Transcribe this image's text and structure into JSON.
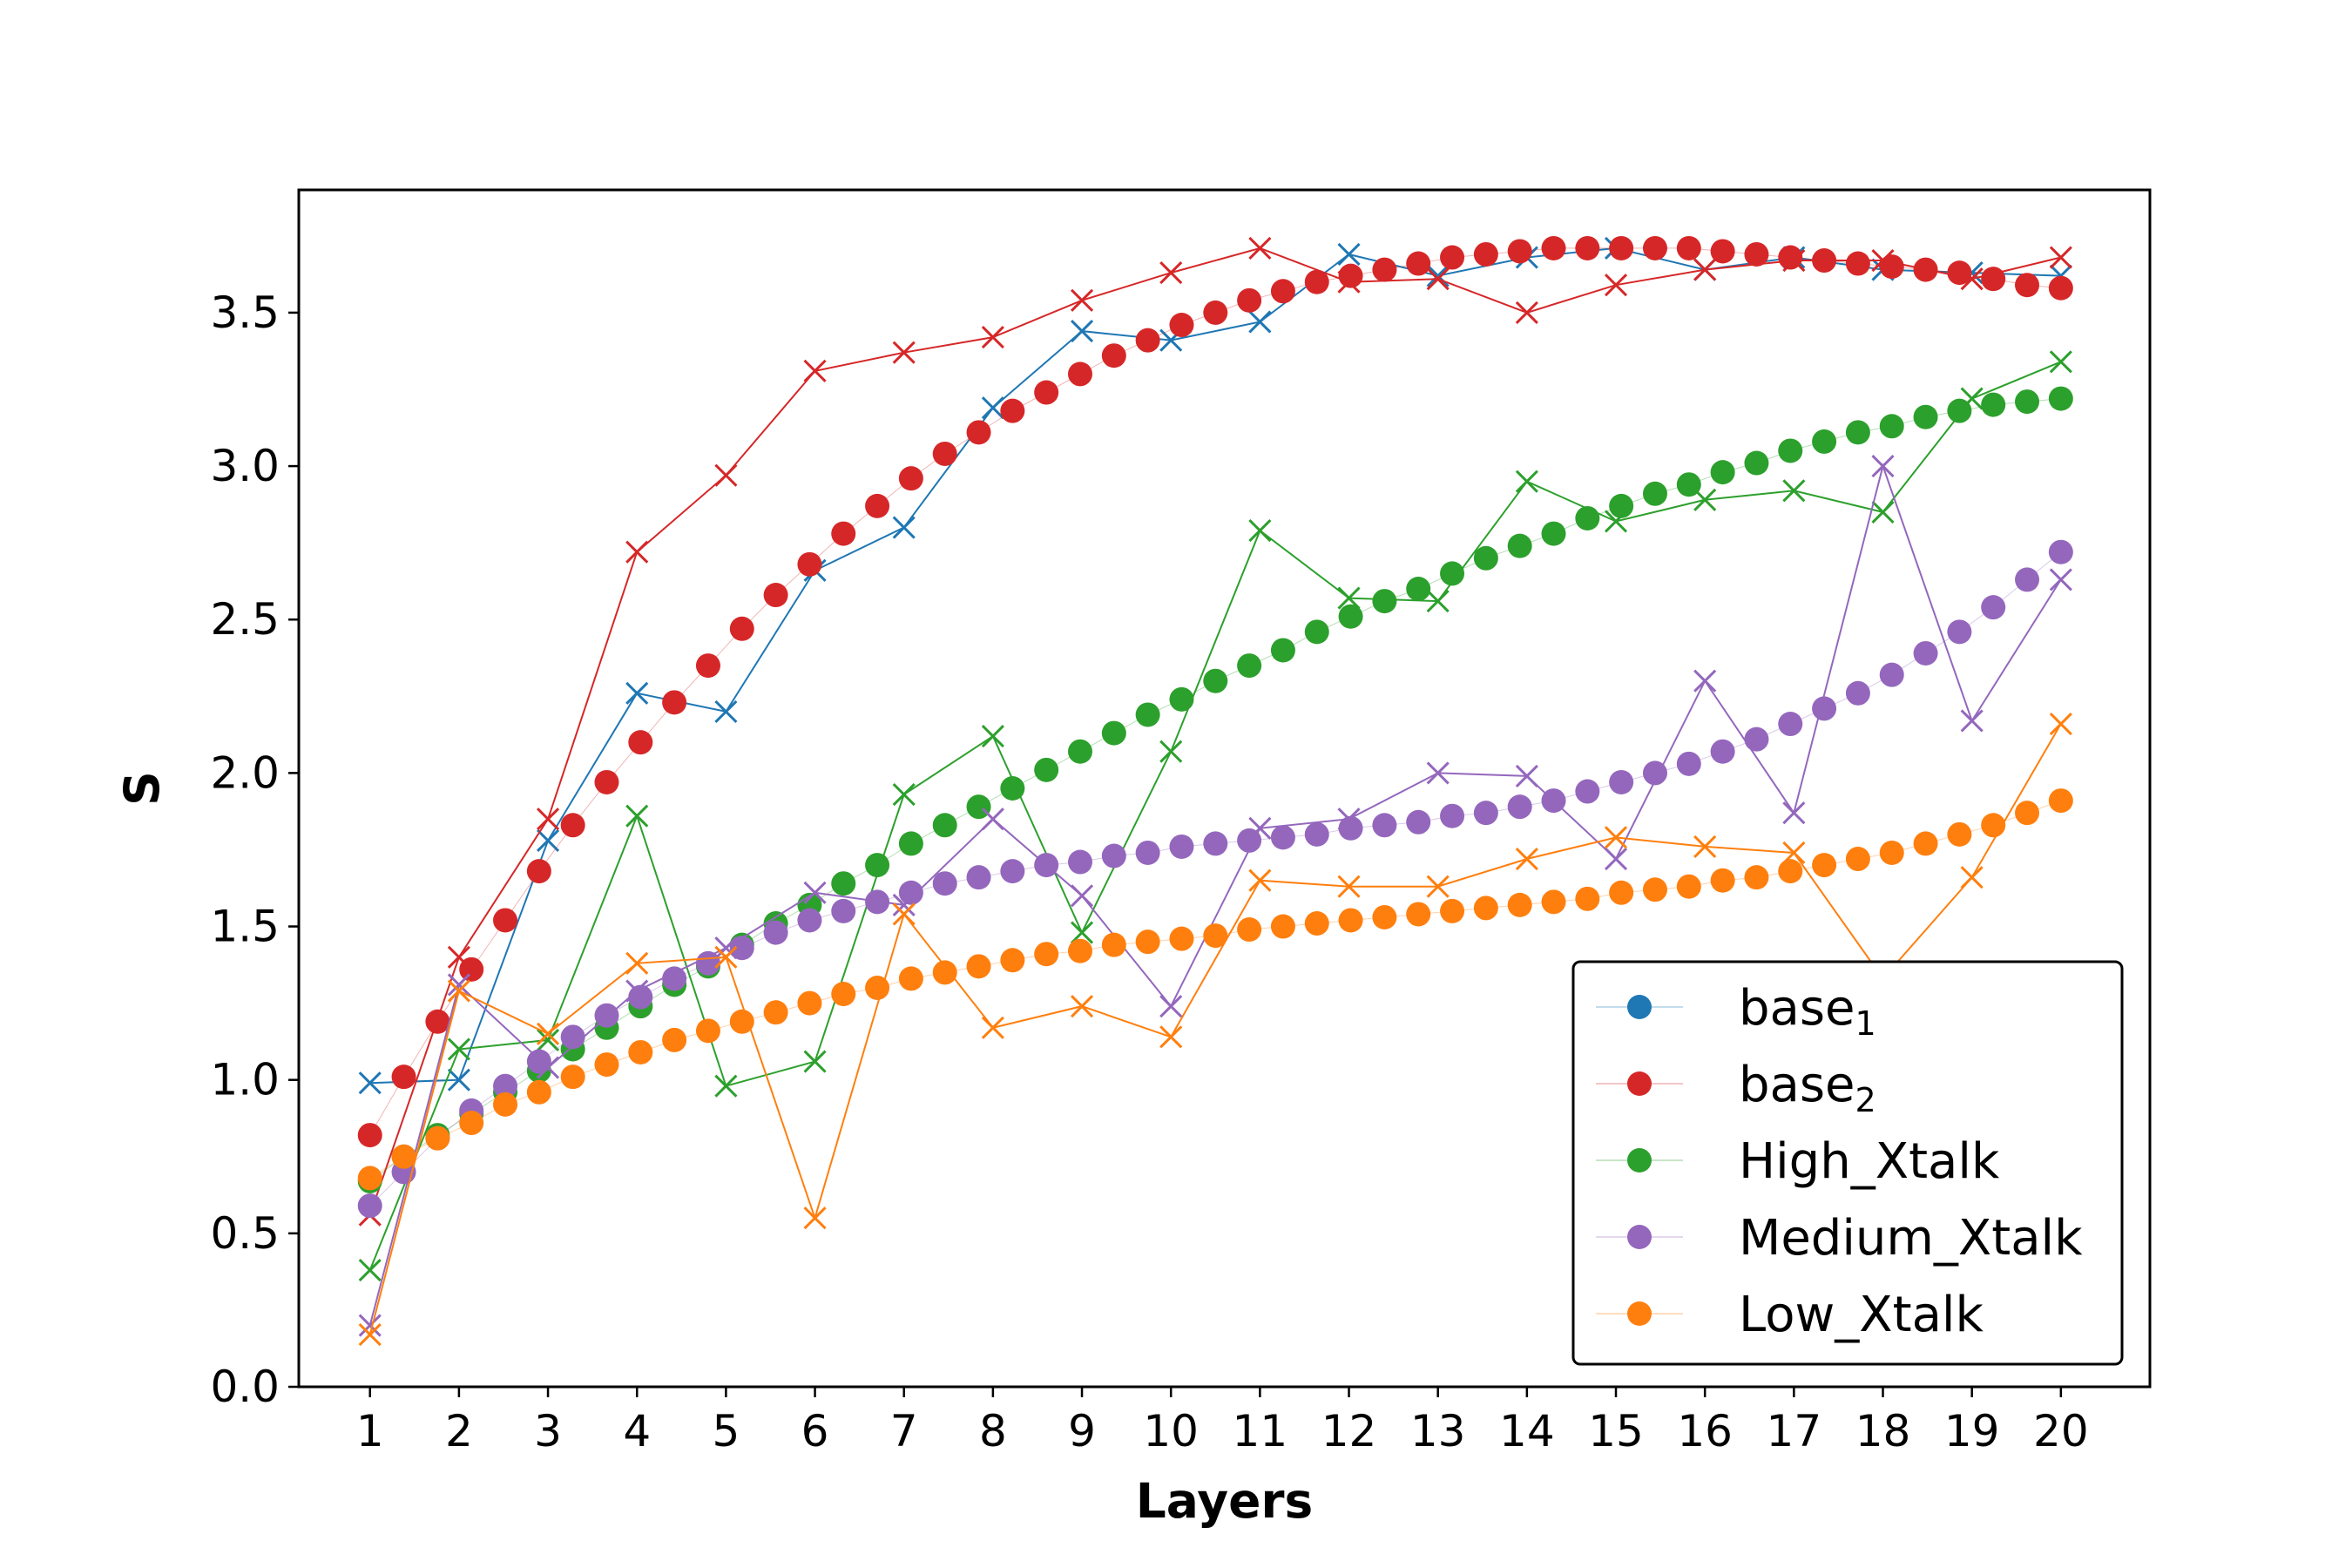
{
  "chart_data": {
    "type": "scatter",
    "title": "",
    "xlabel": "Layers",
    "ylabel": "S",
    "x_ticks": [
      "1",
      "2",
      "3",
      "4",
      "5",
      "6",
      "7",
      "8",
      "9",
      "10",
      "11",
      "12",
      "13",
      "14",
      "15",
      "16",
      "17",
      "18",
      "19",
      "20"
    ],
    "y_ticks": [
      "0.0",
      "0.5",
      "1.0",
      "1.5",
      "2.0",
      "2.5",
      "3.0",
      "3.5"
    ],
    "xlim": [
      0.2,
      21.0
    ],
    "ylim": [
      0.0,
      3.9
    ],
    "grid": false,
    "legend_position": "bottom-right",
    "series": [
      {
        "name": "base",
        "subscript": "1",
        "color": "#1f77b4",
        "marker_x": [
          1,
          2,
          3,
          4,
          5,
          6,
          7,
          8,
          9,
          10,
          11,
          12,
          13,
          14,
          15,
          16,
          17,
          18,
          19,
          20
        ],
        "marker_y": [
          0.99,
          1.0,
          1.78,
          2.26,
          2.2,
          2.66,
          2.8,
          3.19,
          3.44,
          3.41,
          3.47,
          3.69,
          3.62,
          3.68,
          3.71,
          3.64,
          3.68,
          3.64,
          3.63,
          3.62
        ],
        "dot_x": [],
        "dot_y": []
      },
      {
        "name": "base",
        "subscript": "2",
        "color": "#d62728",
        "marker_x": [
          1,
          2,
          3,
          4,
          5,
          6,
          7,
          8,
          9,
          10,
          11,
          12,
          13,
          14,
          15,
          16,
          17,
          18,
          19,
          20
        ],
        "marker_y": [
          0.56,
          1.4,
          1.85,
          2.72,
          2.97,
          3.31,
          3.37,
          3.42,
          3.54,
          3.63,
          3.71,
          3.6,
          3.61,
          3.5,
          3.59,
          3.64,
          3.67,
          3.67,
          3.61,
          3.68
        ],
        "dot_x": [
          1,
          1.38,
          1.76,
          2.14,
          2.52,
          2.9,
          3.28,
          3.66,
          4.04,
          4.42,
          4.8,
          5.18,
          5.56,
          5.94,
          6.32,
          6.7,
          7.08,
          7.46,
          7.84,
          8.22,
          8.6,
          8.98,
          9.36,
          9.74,
          10.12,
          10.5,
          10.88,
          11.26,
          11.64,
          12.02,
          12.4,
          12.78,
          13.16,
          13.54,
          13.92,
          14.3,
          14.68,
          15.06,
          15.44,
          15.82,
          16.2,
          16.58,
          16.96,
          17.34,
          17.72,
          18.1,
          18.48,
          18.86,
          19.24,
          19.62,
          20
        ],
        "dot_y": [
          0.82,
          1.01,
          1.19,
          1.36,
          1.52,
          1.68,
          1.83,
          1.97,
          2.1,
          2.23,
          2.35,
          2.47,
          2.58,
          2.68,
          2.78,
          2.87,
          2.96,
          3.04,
          3.11,
          3.18,
          3.24,
          3.3,
          3.36,
          3.41,
          3.46,
          3.5,
          3.54,
          3.57,
          3.6,
          3.62,
          3.64,
          3.66,
          3.68,
          3.69,
          3.7,
          3.71,
          3.71,
          3.71,
          3.71,
          3.71,
          3.7,
          3.69,
          3.68,
          3.67,
          3.66,
          3.65,
          3.64,
          3.63,
          3.61,
          3.59,
          3.58
        ]
      },
      {
        "name": "High_Xtalk",
        "subscript": "",
        "color": "#2ca02c",
        "marker_x": [
          1,
          2,
          3,
          4,
          5,
          6,
          7,
          8,
          9,
          10,
          11,
          12,
          13,
          14,
          15,
          16,
          17,
          18,
          19,
          20
        ],
        "marker_y": [
          0.38,
          1.1,
          1.13,
          1.86,
          0.98,
          1.06,
          1.93,
          2.12,
          1.48,
          2.07,
          2.79,
          2.57,
          2.56,
          2.95,
          2.82,
          2.89,
          2.92,
          2.85,
          3.22,
          3.34
        ],
        "dot_x": [
          1,
          1.38,
          1.76,
          2.14,
          2.52,
          2.9,
          3.28,
          3.66,
          4.04,
          4.42,
          4.8,
          5.18,
          5.56,
          5.94,
          6.32,
          6.7,
          7.08,
          7.46,
          7.84,
          8.22,
          8.6,
          8.98,
          9.36,
          9.74,
          10.12,
          10.5,
          10.88,
          11.26,
          11.64,
          12.02,
          12.4,
          12.78,
          13.16,
          13.54,
          13.92,
          14.3,
          14.68,
          15.06,
          15.44,
          15.82,
          16.2,
          16.58,
          16.96,
          17.34,
          17.72,
          18.1,
          18.48,
          18.86,
          19.24,
          19.62,
          20
        ],
        "dot_y": [
          0.67,
          0.75,
          0.82,
          0.89,
          0.96,
          1.03,
          1.1,
          1.17,
          1.24,
          1.31,
          1.37,
          1.44,
          1.51,
          1.57,
          1.64,
          1.7,
          1.77,
          1.83,
          1.89,
          1.95,
          2.01,
          2.07,
          2.13,
          2.19,
          2.24,
          2.3,
          2.35,
          2.4,
          2.46,
          2.51,
          2.56,
          2.6,
          2.65,
          2.7,
          2.74,
          2.78,
          2.83,
          2.87,
          2.91,
          2.94,
          2.98,
          3.01,
          3.05,
          3.08,
          3.11,
          3.13,
          3.16,
          3.18,
          3.2,
          3.21,
          3.22
        ]
      },
      {
        "name": "Medium_Xtalk",
        "subscript": "",
        "color": "#9467bd",
        "marker_x": [
          1,
          2,
          3,
          4,
          5,
          6,
          7,
          8,
          9,
          10,
          11,
          12,
          13,
          14,
          15,
          16,
          17,
          18,
          19,
          20
        ],
        "marker_y": [
          0.2,
          1.31,
          1.04,
          1.29,
          1.43,
          1.61,
          1.57,
          1.85,
          1.6,
          1.24,
          1.82,
          1.85,
          2.0,
          1.99,
          1.72,
          2.3,
          1.87,
          3.0,
          2.17,
          2.63
        ],
        "dot_x": [
          1,
          1.38,
          1.76,
          2.14,
          2.52,
          2.9,
          3.28,
          3.66,
          4.04,
          4.42,
          4.8,
          5.18,
          5.56,
          5.94,
          6.32,
          6.7,
          7.08,
          7.46,
          7.84,
          8.22,
          8.6,
          8.98,
          9.36,
          9.74,
          10.12,
          10.5,
          10.88,
          11.26,
          11.64,
          12.02,
          12.4,
          12.78,
          13.16,
          13.54,
          13.92,
          14.3,
          14.68,
          15.06,
          15.44,
          15.82,
          16.2,
          16.58,
          16.96,
          17.34,
          17.72,
          18.1,
          18.48,
          18.86,
          19.24,
          19.62,
          20
        ],
        "dot_y": [
          0.59,
          0.7,
          0.81,
          0.9,
          0.98,
          1.06,
          1.14,
          1.21,
          1.27,
          1.33,
          1.38,
          1.43,
          1.48,
          1.52,
          1.55,
          1.58,
          1.61,
          1.64,
          1.66,
          1.68,
          1.7,
          1.71,
          1.73,
          1.74,
          1.76,
          1.77,
          1.78,
          1.79,
          1.8,
          1.82,
          1.83,
          1.84,
          1.86,
          1.87,
          1.89,
          1.91,
          1.94,
          1.97,
          2.0,
          2.03,
          2.07,
          2.11,
          2.16,
          2.21,
          2.26,
          2.32,
          2.39,
          2.46,
          2.54,
          2.63,
          2.72
        ]
      },
      {
        "name": "Low_Xtalk",
        "subscript": "",
        "color": "#ff7f0e",
        "marker_x": [
          1,
          2,
          3,
          4,
          5,
          6,
          7,
          8,
          9,
          10,
          11,
          12,
          13,
          14,
          15,
          16,
          17,
          18,
          19,
          20
        ],
        "marker_y": [
          0.17,
          1.29,
          1.15,
          1.38,
          1.4,
          0.55,
          1.54,
          1.17,
          1.24,
          1.14,
          1.65,
          1.63,
          1.63,
          1.72,
          1.79,
          1.76,
          1.74,
          1.33,
          1.66,
          2.16
        ],
        "dot_x": [
          1,
          1.38,
          1.76,
          2.14,
          2.52,
          2.9,
          3.28,
          3.66,
          4.04,
          4.42,
          4.8,
          5.18,
          5.56,
          5.94,
          6.32,
          6.7,
          7.08,
          7.46,
          7.84,
          8.22,
          8.6,
          8.98,
          9.36,
          9.74,
          10.12,
          10.5,
          10.88,
          11.26,
          11.64,
          12.02,
          12.4,
          12.78,
          13.16,
          13.54,
          13.92,
          14.3,
          14.68,
          15.06,
          15.44,
          15.82,
          16.2,
          16.58,
          16.96,
          17.34,
          17.72,
          18.1,
          18.48,
          18.86,
          19.24,
          19.62,
          20
        ],
        "dot_y": [
          0.68,
          0.75,
          0.81,
          0.86,
          0.92,
          0.96,
          1.01,
          1.05,
          1.09,
          1.13,
          1.16,
          1.19,
          1.22,
          1.25,
          1.28,
          1.3,
          1.33,
          1.35,
          1.37,
          1.39,
          1.41,
          1.42,
          1.44,
          1.45,
          1.46,
          1.47,
          1.49,
          1.5,
          1.51,
          1.52,
          1.53,
          1.54,
          1.55,
          1.56,
          1.57,
          1.58,
          1.59,
          1.61,
          1.62,
          1.63,
          1.65,
          1.66,
          1.68,
          1.7,
          1.72,
          1.74,
          1.77,
          1.8,
          1.83,
          1.87,
          1.91
        ]
      }
    ]
  }
}
